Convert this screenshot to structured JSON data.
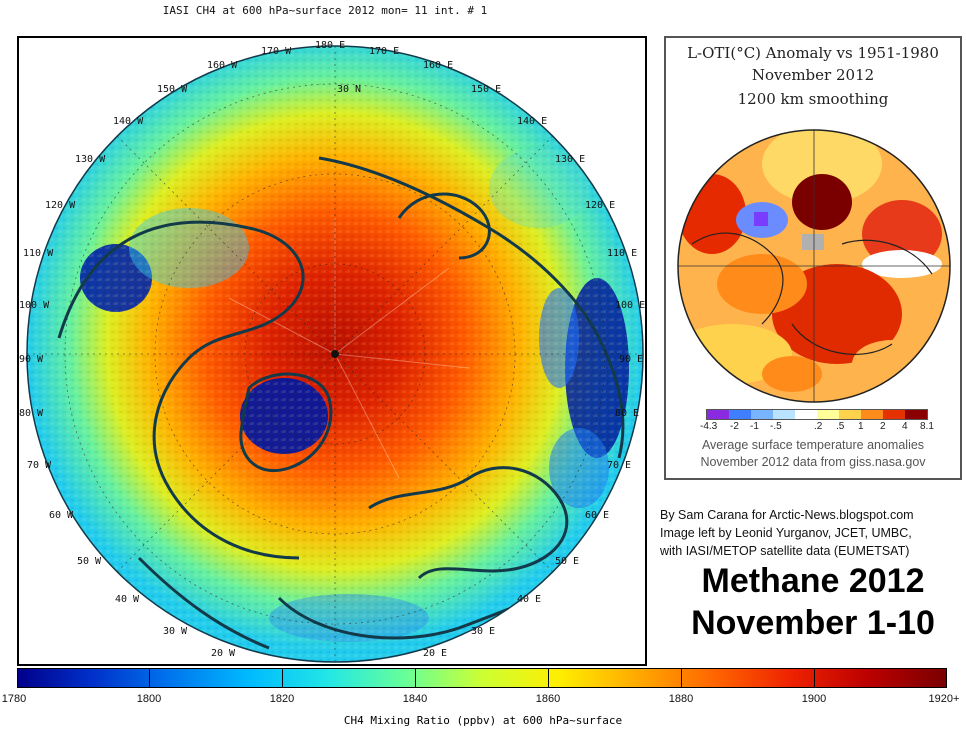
{
  "main_title": "IASI CH4 at 600 hPa~surface 2012 mon= 11 int. # 1",
  "longitude_labels": [
    {
      "id": "180",
      "text": "180 E"
    },
    {
      "id": "170w",
      "text": "170 W"
    },
    {
      "id": "170e",
      "text": "170 E"
    },
    {
      "id": "160w",
      "text": "160 W"
    },
    {
      "id": "160e",
      "text": "160 E"
    },
    {
      "id": "150w",
      "text": "150 W"
    },
    {
      "id": "150e",
      "text": "150 E"
    },
    {
      "id": "140w",
      "text": "140 W"
    },
    {
      "id": "140e",
      "text": "140 E"
    },
    {
      "id": "130w",
      "text": "130 W"
    },
    {
      "id": "130e",
      "text": "130 E"
    },
    {
      "id": "120w",
      "text": "120 W"
    },
    {
      "id": "120e",
      "text": "120 E"
    },
    {
      "id": "110w",
      "text": "110 W"
    },
    {
      "id": "110e",
      "text": "110 E"
    },
    {
      "id": "100w",
      "text": "100 W"
    },
    {
      "id": "100e",
      "text": "100 E"
    },
    {
      "id": "90w",
      "text": "90 W"
    },
    {
      "id": "90e",
      "text": "90 E"
    },
    {
      "id": "80w",
      "text": "80 W"
    },
    {
      "id": "80e",
      "text": "80 E"
    },
    {
      "id": "70w",
      "text": "70 W"
    },
    {
      "id": "70e",
      "text": "70 E"
    },
    {
      "id": "60w",
      "text": "60 W"
    },
    {
      "id": "60e",
      "text": "60 E"
    },
    {
      "id": "50w",
      "text": "50 W"
    },
    {
      "id": "50e",
      "text": "50 E"
    },
    {
      "id": "40w",
      "text": "40 W"
    },
    {
      "id": "40e",
      "text": "40 E"
    },
    {
      "id": "30w",
      "text": "30 W"
    },
    {
      "id": "30e",
      "text": "30 E"
    },
    {
      "id": "20w",
      "text": "20 W"
    },
    {
      "id": "20e",
      "text": "20 E"
    }
  ],
  "latitude_label": "30 N",
  "colorbar": {
    "ticks": [
      "1780",
      "1800",
      "1820",
      "1840",
      "1860",
      "1880",
      "1900",
      "1920+"
    ],
    "title": "CH4 Mixing Ratio (ppbv) at 600 hPa~surface",
    "colors": [
      "#00008b",
      "#0033cc",
      "#0077ee",
      "#00bbff",
      "#22e6e6",
      "#66ff99",
      "#ccff33",
      "#ffee00",
      "#ffaa00",
      "#ff6600",
      "#ee2200",
      "#bb0000",
      "#7a0000"
    ]
  },
  "inset": {
    "title_line1": "L-OTI(°C) Anomaly vs 1951-1980",
    "title_line2": "November 2012",
    "title_line3": "1200 km smoothing",
    "scale_labels": [
      "-4.3",
      "-2",
      "-1",
      "-.5",
      ".2",
      ".5",
      "1",
      "2",
      "4",
      "8.1"
    ],
    "scale_colors": [
      "#8a2be2",
      "#3f7fff",
      "#78b4ff",
      "#b9e3ff",
      "#ffffff",
      "#ffff99",
      "#ffd24d",
      "#ff8c1a",
      "#e63200",
      "#8b0000"
    ],
    "caption_line1": "Average surface temperature anomalies",
    "caption_line2": "November 2012 data from giss.nasa.gov"
  },
  "credits": {
    "line1": "By Sam Carana for Arctic-News.blogspot.com",
    "line2": "Image left by Leonid Yurganov, JCET, UMBC,",
    "line3": "with IASI/METOP satellite data (EUMETSAT)"
  },
  "headline": {
    "line1": "Methane 2012",
    "line2": "November 1-10"
  }
}
